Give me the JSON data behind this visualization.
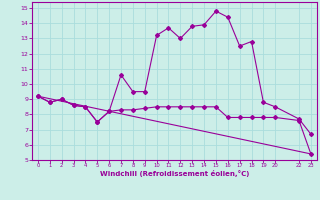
{
  "xlabel": "Windchill (Refroidissement éolien,°C)",
  "bg_color": "#cceee8",
  "grid_color": "#aadddd",
  "line_color": "#990099",
  "xlim": [
    -0.5,
    23.5
  ],
  "ylim": [
    5,
    15.4
  ],
  "xticks": [
    0,
    1,
    2,
    3,
    4,
    5,
    6,
    7,
    8,
    9,
    10,
    11,
    12,
    13,
    14,
    15,
    16,
    17,
    18,
    19,
    20,
    22,
    23
  ],
  "yticks": [
    5,
    6,
    7,
    8,
    9,
    10,
    11,
    12,
    13,
    14,
    15
  ],
  "series1_x": [
    0,
    1,
    2,
    3,
    4,
    5,
    6,
    7,
    8,
    9,
    10,
    11,
    12,
    13,
    14,
    15,
    16,
    17,
    18,
    19,
    20,
    22,
    23
  ],
  "series1_y": [
    9.2,
    8.8,
    9.0,
    8.6,
    8.5,
    7.5,
    8.2,
    10.6,
    9.5,
    9.5,
    13.2,
    13.7,
    13.0,
    13.8,
    13.9,
    14.8,
    14.4,
    12.5,
    12.8,
    8.8,
    8.5,
    7.7,
    6.7
  ],
  "series2_x": [
    0,
    1,
    2,
    3,
    4,
    5,
    6,
    7,
    8,
    9,
    10,
    11,
    12,
    13,
    14,
    15,
    16,
    17,
    18,
    19,
    20,
    22,
    23
  ],
  "series2_y": [
    9.2,
    8.8,
    9.0,
    8.6,
    8.5,
    7.5,
    8.2,
    8.3,
    8.3,
    8.4,
    8.5,
    8.5,
    8.5,
    8.5,
    8.5,
    8.5,
    7.8,
    7.8,
    7.8,
    7.8,
    7.8,
    7.6,
    5.4
  ],
  "series3_x": [
    0,
    23
  ],
  "series3_y": [
    9.2,
    5.4
  ],
  "xtick_labels": [
    "0",
    "1",
    "2",
    "3",
    "4",
    "5",
    "6",
    "7",
    "8",
    "9",
    "10",
    "11",
    "12",
    "13",
    "14",
    "15",
    "16",
    "17",
    "18",
    "19",
    "20",
    "22",
    "23"
  ]
}
